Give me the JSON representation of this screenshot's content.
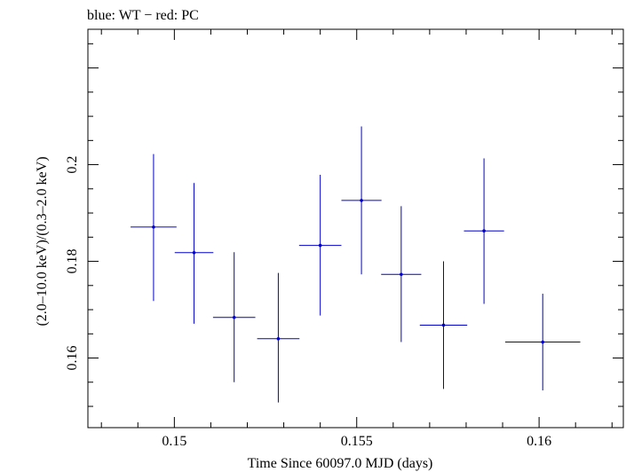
{
  "chart_data": {
    "type": "scatter",
    "title": "blue: WT − red: PC",
    "xlabel": "Time Since 60097.0 MJD (days)",
    "ylabel": "(2.0–10.0 keV)/(0.3–2.0 keV)",
    "xlim": [
      0.14763,
      0.16231
    ],
    "ylim": [
      0.1456,
      0.228
    ],
    "xticks": [
      0.15,
      0.155,
      0.16
    ],
    "xtick_labels": [
      "0.15",
      "0.155",
      "0.16"
    ],
    "yticks": [
      0.16,
      0.18,
      0.2
    ],
    "ytick_labels": [
      "0.16",
      "0.18",
      "0.2"
    ],
    "grid": false,
    "series": [
      {
        "color": "#0000cc",
        "points": [
          {
            "x": 0.14943,
            "xerr": 0.00063,
            "y": 0.1871,
            "ylo": 0.1718,
            "yhi": 0.2022
          },
          {
            "x": 0.15054,
            "xerr": 0.00053,
            "y": 0.1818,
            "ylo": 0.1671,
            "yhi": 0.1962
          },
          {
            "x": 0.15164,
            "xerr": 0.00058,
            "y": 0.1684,
            "ylo": 0.155,
            "yhi": 0.1819
          },
          {
            "x": 0.15285,
            "xerr": 0.00058,
            "y": 0.164,
            "ylo": 0.1508,
            "yhi": 0.1776
          },
          {
            "x": 0.154,
            "xerr": 0.00058,
            "y": 0.1833,
            "ylo": 0.1688,
            "yhi": 0.1979
          },
          {
            "x": 0.15513,
            "xerr": 0.00055,
            "y": 0.1926,
            "ylo": 0.1773,
            "yhi": 0.2079
          },
          {
            "x": 0.15622,
            "xerr": 0.00055,
            "y": 0.1773,
            "ylo": 0.1633,
            "yhi": 0.1914
          },
          {
            "x": 0.15738,
            "xerr": 0.00065,
            "y": 0.1668,
            "ylo": 0.1536,
            "yhi": 0.18
          },
          {
            "x": 0.15849,
            "xerr": 0.00055,
            "y": 0.1863,
            "ylo": 0.1712,
            "yhi": 0.2013
          },
          {
            "x": 0.1601,
            "xerr": 0.00103,
            "y": 0.1633,
            "ylo": 0.1533,
            "yhi": 0.1733
          }
        ]
      }
    ]
  }
}
